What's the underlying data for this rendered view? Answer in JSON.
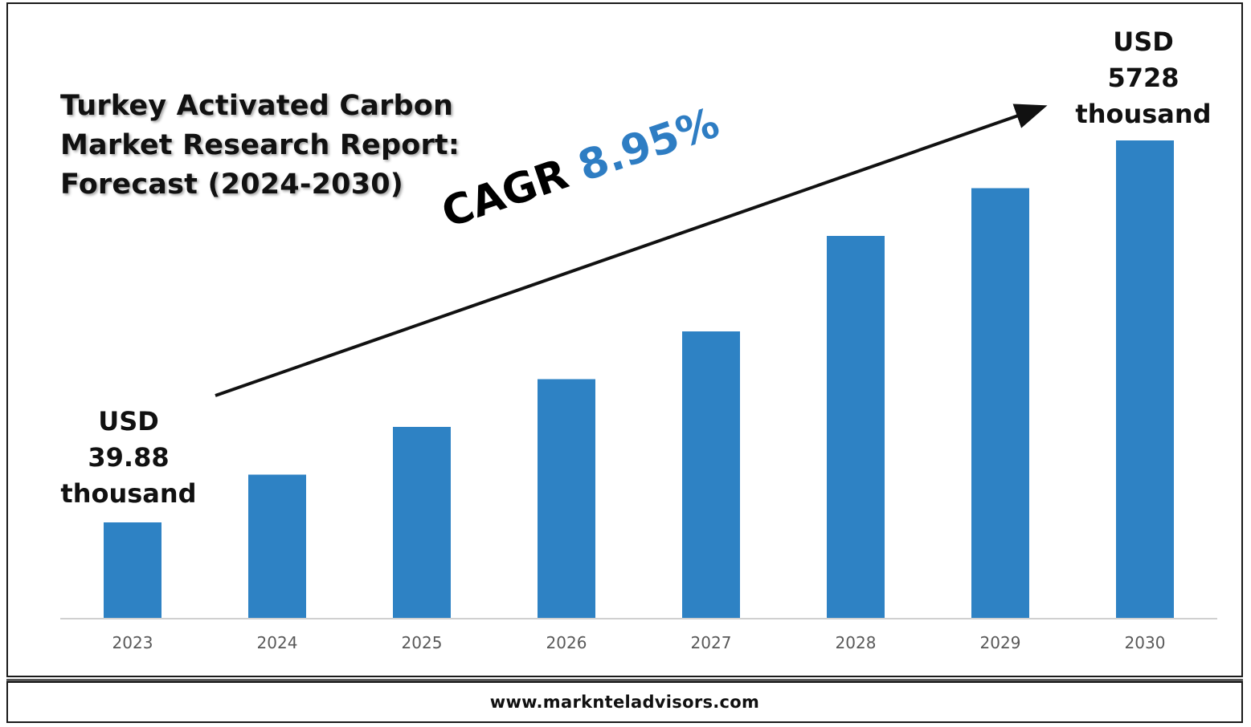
{
  "title": "Turkey Activated Carbon Market Research Report: Forecast (2024-2030)",
  "cagr": {
    "label": "CAGR",
    "value": "8.95%"
  },
  "callout_start": {
    "line1": "USD",
    "line2": "39.88",
    "line3": "thousand"
  },
  "callout_end": {
    "line1": "USD",
    "line2": "5728",
    "line3": "thousand"
  },
  "footer": {
    "url": "www.marknteladvisors.com"
  },
  "colors": {
    "bar": "#2e82c4",
    "cagr_value": "#2e7dc3",
    "axis": "#d0d0d0"
  },
  "chart_data": {
    "type": "bar",
    "categories": [
      "2023",
      "2024",
      "2025",
      "2026",
      "2027",
      "2028",
      "2029",
      "2030"
    ],
    "values": [
      1,
      1.5,
      2,
      2.5,
      3,
      4,
      4.5,
      5
    ],
    "ylim": [
      0,
      5
    ],
    "grid": false,
    "legend": "none"
  }
}
